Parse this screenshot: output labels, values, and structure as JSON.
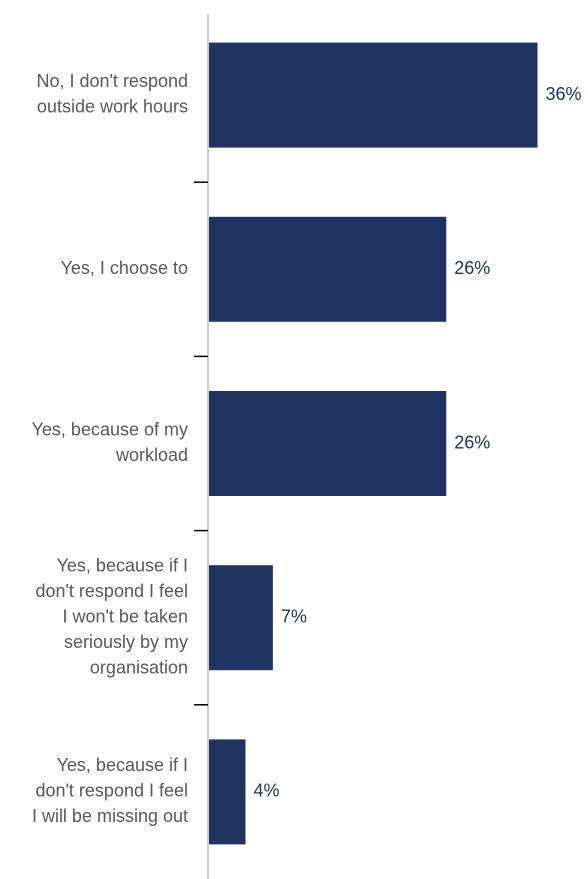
{
  "chart_data": {
    "type": "bar",
    "orientation": "horizontal",
    "categories": [
      [
        "No, I don't respond",
        "outside work hours"
      ],
      [
        "Yes, I choose to"
      ],
      [
        "Yes, because of my",
        "workload"
      ],
      [
        "Yes, because if I",
        "don't respond I feel",
        "I won't be taken",
        "seriously by my",
        "organisation"
      ],
      [
        "Yes, because if I",
        "don't respond I feel",
        "I will be missing out"
      ]
    ],
    "values": [
      36,
      26,
      26,
      7,
      4
    ],
    "value_labels": [
      "36%",
      "26%",
      "26%",
      "7%",
      "4%"
    ],
    "unit": "%",
    "xlim": [
      0,
      40
    ],
    "grid": false,
    "legend": "none",
    "bar_color": "#1f3461",
    "value_label_color": "#1f3461",
    "category_label_color": "#595959",
    "axis_color": "#bfbfbf"
  }
}
